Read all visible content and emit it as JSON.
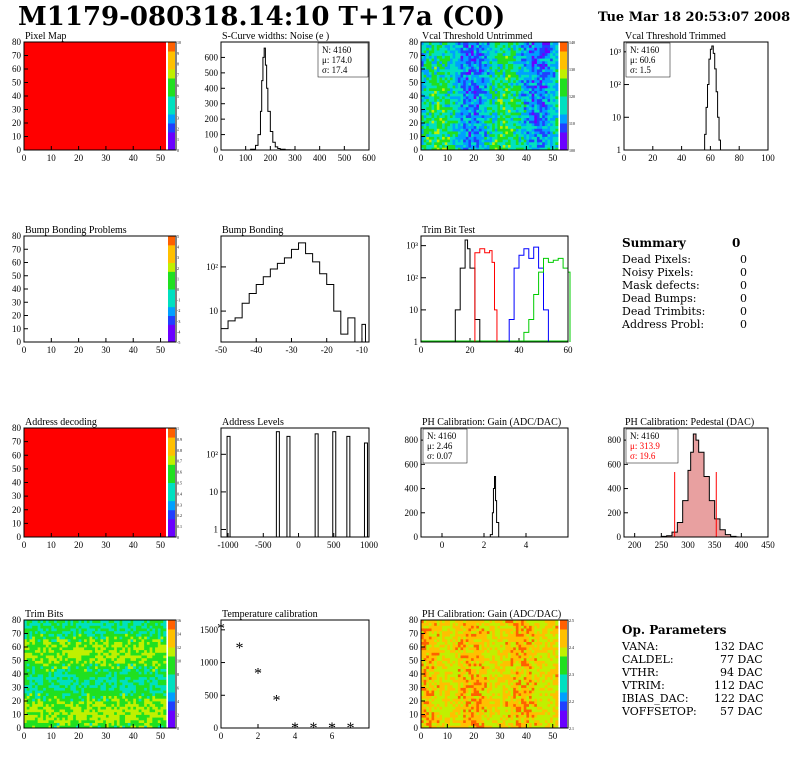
{
  "header": {
    "title": "M1179-080318.14:10 T+17a (C0)",
    "date": "Tue Mar 18 20:53:07 2008"
  },
  "panels": {
    "p1": {
      "title": "Pixel Map",
      "xticks": [
        "0",
        "10",
        "20",
        "30",
        "40",
        "50"
      ],
      "yticks": [
        "0",
        "10",
        "20",
        "30",
        "40",
        "50",
        "60",
        "70",
        "80"
      ],
      "zticks": [
        "0",
        "1",
        "2",
        "3",
        "4",
        "5",
        "6",
        "7",
        "8",
        "9",
        "10"
      ]
    },
    "p2": {
      "title": "S-Curve widths: Noise (e )",
      "stats": [
        "N: 4160",
        "μ: 174.0",
        "σ: 17.4"
      ],
      "xticks": [
        "0",
        "100",
        "200",
        "300",
        "400",
        "500",
        "600"
      ],
      "yticks": [
        "0",
        "100",
        "200",
        "300",
        "400",
        "500",
        "600"
      ]
    },
    "p3": {
      "title": "Vcal Threshold Untrimmed",
      "xticks": [
        "0",
        "10",
        "20",
        "30",
        "40",
        "50"
      ],
      "yticks": [
        "0",
        "10",
        "20",
        "30",
        "40",
        "50",
        "60",
        "70",
        "80"
      ],
      "zticks": [
        "100",
        "110",
        "120",
        "130",
        "140"
      ]
    },
    "p4": {
      "title": "Vcal Threshold Trimmed",
      "stats": [
        "N: 4160",
        "μ: 60.6",
        "σ:  1.5"
      ],
      "xticks": [
        "0",
        "20",
        "40",
        "60",
        "80",
        "100"
      ],
      "yticks": [
        "1",
        "10",
        "10²",
        "10³"
      ]
    },
    "p5": {
      "title": "Bump Bonding Problems",
      "xticks": [
        "0",
        "10",
        "20",
        "30",
        "40",
        "50"
      ],
      "yticks": [
        "0",
        "10",
        "20",
        "30",
        "40",
        "50",
        "60",
        "70",
        "80"
      ],
      "zticks": [
        "-5",
        "-4",
        "-3",
        "-2",
        "-1",
        "0",
        "1",
        "2",
        "3",
        "4",
        "5"
      ]
    },
    "p6": {
      "title": "Bump Bonding",
      "xticks": [
        "-50",
        "-40",
        "-30",
        "-20",
        "-10"
      ],
      "yticks": [
        "10",
        "10²"
      ]
    },
    "p7": {
      "title": "Trim Bit Test",
      "xticks": [
        "0",
        "20",
        "40",
        "60"
      ],
      "yticks": [
        "1",
        "10",
        "10²",
        "10³"
      ]
    },
    "p9": {
      "title": "Address decoding",
      "xticks": [
        "0",
        "10",
        "20",
        "30",
        "40",
        "50"
      ],
      "yticks": [
        "0",
        "10",
        "20",
        "30",
        "40",
        "50",
        "60",
        "70",
        "80"
      ],
      "zticks": [
        "0",
        "0.1",
        "0.2",
        "0.3",
        "0.4",
        "0.5",
        "0.6",
        "0.7",
        "0.8",
        "0.9",
        "1"
      ]
    },
    "p10": {
      "title": "Address Levels",
      "xticks": [
        "-1000",
        "-500",
        "0",
        "500",
        "1000"
      ],
      "yticks": [
        "1",
        "10",
        "10²"
      ]
    },
    "p11": {
      "title": "PH Calibration: Gain (ADC/DAC)",
      "stats": [
        "N: 4160",
        "μ: 2.46",
        "σ: 0.07"
      ],
      "xticks": [
        "0",
        "2",
        "4"
      ],
      "yticks": [
        "0",
        "200",
        "400",
        "600",
        "800"
      ]
    },
    "p12": {
      "title": "PH Calibration: Pedestal (DAC)",
      "stats": [
        "N: 4160",
        "μ: 313.9",
        "σ: 19.6"
      ],
      "xticks": [
        "200",
        "250",
        "300",
        "350",
        "400",
        "450"
      ],
      "yticks": [
        "0",
        "200",
        "400",
        "600",
        "800"
      ]
    },
    "p13": {
      "title": "Trim Bits",
      "xticks": [
        "0",
        "10",
        "20",
        "30",
        "40",
        "50"
      ],
      "yticks": [
        "0",
        "10",
        "20",
        "30",
        "40",
        "50",
        "60",
        "70",
        "80"
      ],
      "zticks": [
        "0",
        "2",
        "4",
        "6",
        "8",
        "10",
        "12",
        "14",
        "16"
      ]
    },
    "p14": {
      "title": "Temperature calibration",
      "xticks": [
        "0",
        "2",
        "4",
        "6"
      ],
      "yticks": [
        "0",
        "500",
        "1000",
        "1500"
      ]
    },
    "p15": {
      "title": "PH Calibration: Gain (ADC/DAC)",
      "xticks": [
        "0",
        "10",
        "20",
        "30",
        "40",
        "50"
      ],
      "yticks": [
        "0",
        "10",
        "20",
        "30",
        "40",
        "50",
        "60",
        "70",
        "80"
      ],
      "zticks": [
        "2.1",
        "2.2",
        "2.3",
        "2.4",
        "2.5"
      ]
    }
  },
  "summary": {
    "title": "Summary",
    "total": "0",
    "rows": [
      [
        "Dead Pixels:",
        "0"
      ],
      [
        "Noisy Pixels:",
        "0"
      ],
      [
        "Mask defects:",
        "0"
      ],
      [
        "Dead Bumps:",
        "0"
      ],
      [
        "Dead Trimbits:",
        "0"
      ],
      [
        "Address Probl:",
        "0"
      ]
    ]
  },
  "op_params": {
    "title": "Op. Parameters",
    "rows": [
      [
        "VANA:",
        "132 DAC"
      ],
      [
        "CALDEL:",
        "77 DAC"
      ],
      [
        "VTHR:",
        "94 DAC"
      ],
      [
        "VTRIM:",
        "112 DAC"
      ],
      [
        "IBIAS_DAC:",
        "122 DAC"
      ],
      [
        "VOFFSETOP:",
        "57 DAC"
      ]
    ]
  },
  "colors": {
    "hist": "#000000",
    "red": "#ff0000",
    "blue": "#0000ff",
    "green": "#00cc00",
    "pedestal_fill": "#e8a0a0"
  },
  "chart_data": [
    {
      "type": "heatmap",
      "name": "Pixel Map",
      "xlim": [
        0,
        52
      ],
      "ylim": [
        0,
        80
      ],
      "zlim": [
        0,
        10
      ],
      "value_all": 10
    },
    {
      "type": "histogram",
      "name": "S-Curve widths: Noise",
      "xlim": [
        0,
        600
      ],
      "ylim": [
        0,
        700
      ],
      "x": [
        100,
        120,
        140,
        150,
        160,
        165,
        170,
        175,
        180,
        185,
        190,
        200,
        210,
        220,
        230,
        240,
        260,
        280,
        300
      ],
      "values": [
        0,
        5,
        30,
        100,
        250,
        450,
        600,
        660,
        550,
        400,
        250,
        120,
        50,
        20,
        10,
        5,
        2,
        1,
        0
      ]
    },
    {
      "type": "heatmap",
      "name": "Vcal Threshold Untrimmed",
      "xlim": [
        0,
        52
      ],
      "ylim": [
        0,
        80
      ],
      "zlim": [
        95,
        145
      ]
    },
    {
      "type": "histogram",
      "name": "Vcal Threshold Trimmed",
      "log_y": true,
      "xlim": [
        0,
        100
      ],
      "x": [
        54,
        56,
        57,
        58,
        59,
        60,
        61,
        62,
        63,
        64,
        65,
        66,
        67
      ],
      "values": [
        1,
        3,
        20,
        100,
        600,
        1200,
        1500,
        900,
        300,
        60,
        10,
        2,
        1
      ]
    },
    {
      "type": "heatmap",
      "name": "Bump Bonding Problems",
      "xlim": [
        0,
        52
      ],
      "ylim": [
        0,
        80
      ],
      "zlim": [
        -5,
        5
      ],
      "empty": true
    },
    {
      "type": "histogram",
      "name": "Bump Bonding",
      "log_y": true,
      "xlim": [
        -50,
        -8
      ],
      "x": [
        -50,
        -48,
        -46,
        -44,
        -42,
        -40,
        -38,
        -36,
        -34,
        -32,
        -30,
        -28,
        -26,
        -24,
        -22,
        -20,
        -18,
        -16,
        -14,
        -12,
        -10,
        -9
      ],
      "values": [
        4,
        6,
        7,
        15,
        25,
        40,
        60,
        90,
        120,
        160,
        250,
        350,
        200,
        130,
        70,
        40,
        10,
        3,
        7,
        2,
        5,
        1
      ]
    },
    {
      "type": "line",
      "name": "Trim Bit Test",
      "log_y": true,
      "xlim": [
        0,
        60
      ],
      "series": [
        {
          "color": "black",
          "x": [
            10,
            14,
            16,
            18,
            19,
            20,
            22,
            24
          ],
          "values": [
            1,
            10,
            200,
            1500,
            800,
            200,
            5,
            1
          ]
        },
        {
          "color": "red",
          "x": [
            20,
            22,
            24,
            26,
            28,
            29,
            30,
            31
          ],
          "values": [
            1,
            600,
            800,
            600,
            700,
            300,
            10,
            1
          ]
        },
        {
          "color": "blue",
          "x": [
            33,
            36,
            38,
            40,
            42,
            44,
            46,
            48,
            50,
            52
          ],
          "values": [
            1,
            5,
            200,
            500,
            800,
            400,
            900,
            200,
            10,
            1
          ]
        },
        {
          "color": "green",
          "x": [
            40,
            42,
            44,
            46,
            48,
            50,
            52,
            54,
            56,
            58,
            60
          ],
          "values": [
            1,
            2,
            5,
            30,
            150,
            400,
            300,
            350,
            400,
            200,
            150
          ]
        }
      ]
    },
    {
      "type": "heatmap",
      "name": "Address decoding",
      "xlim": [
        0,
        52
      ],
      "ylim": [
        0,
        80
      ],
      "zlim": [
        0,
        1
      ],
      "value_all": 1
    },
    {
      "type": "histogram",
      "name": "Address Levels",
      "log_y": true,
      "xlim": [
        -1100,
        1000
      ],
      "x": [
        -1000,
        -300,
        -150,
        250,
        500,
        700,
        950
      ],
      "values": [
        300,
        400,
        300,
        350,
        400,
        300,
        200
      ]
    },
    {
      "type": "histogram",
      "name": "PH Calibration: Gain",
      "xlim": [
        -1,
        6
      ],
      "ylim": [
        0,
        900
      ],
      "x": [
        2.2,
        2.3,
        2.4,
        2.45,
        2.5,
        2.55,
        2.6,
        2.7
      ],
      "values": [
        0,
        20,
        200,
        400,
        500,
        300,
        120,
        0
      ]
    },
    {
      "type": "histogram",
      "name": "PH Calibration: Pedestal",
      "xlim": [
        180,
        450
      ],
      "ylim": [
        0,
        900
      ],
      "x": [
        250,
        260,
        270,
        280,
        290,
        300,
        305,
        310,
        315,
        320,
        330,
        340,
        350,
        360,
        370,
        380,
        390
      ],
      "values": [
        5,
        10,
        40,
        120,
        300,
        550,
        700,
        850,
        800,
        700,
        500,
        300,
        150,
        60,
        20,
        5,
        1
      ]
    },
    {
      "type": "heatmap",
      "name": "Trim Bits",
      "xlim": [
        0,
        52
      ],
      "ylim": [
        0,
        80
      ],
      "zlim": [
        0,
        16
      ]
    },
    {
      "type": "scatter",
      "name": "Temperature calibration",
      "xlim": [
        0,
        8
      ],
      "ylim": [
        0,
        1600
      ],
      "x": [
        0,
        1,
        2,
        3,
        4,
        5,
        6,
        7
      ],
      "values": [
        1520,
        1220,
        830,
        420,
        0,
        0,
        0,
        0
      ]
    },
    {
      "type": "heatmap",
      "name": "PH Calibration: Gain map",
      "xlim": [
        0,
        52
      ],
      "ylim": [
        0,
        80
      ],
      "zlim": [
        2.0,
        2.6
      ]
    }
  ]
}
